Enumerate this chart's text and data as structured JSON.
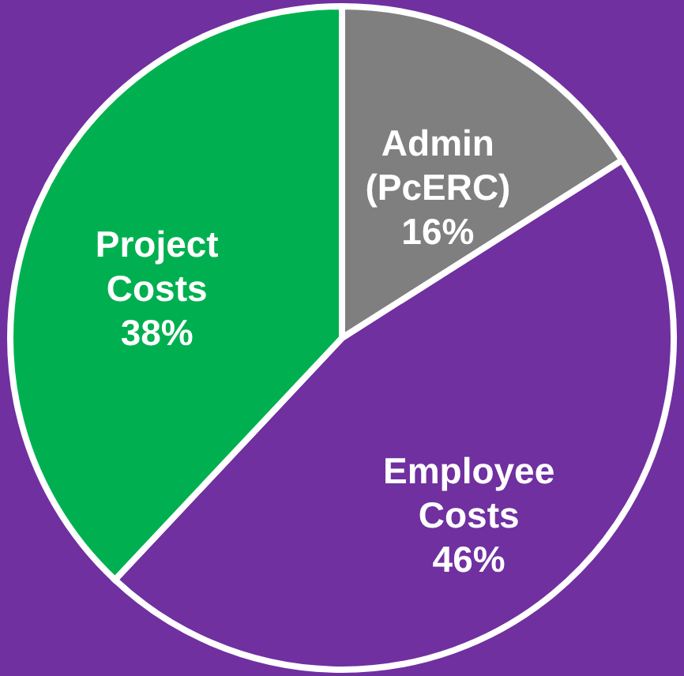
{
  "chart_data": {
    "type": "pie",
    "categories": [
      "Admin (PcERC)",
      "Employee Costs",
      "Project Costs"
    ],
    "values": [
      16,
      46,
      38
    ],
    "colors": [
      "#7f7f7f",
      "#7030a0",
      "#00b050"
    ],
    "value_labels": [
      "16%",
      "46%",
      "38%"
    ]
  }
}
